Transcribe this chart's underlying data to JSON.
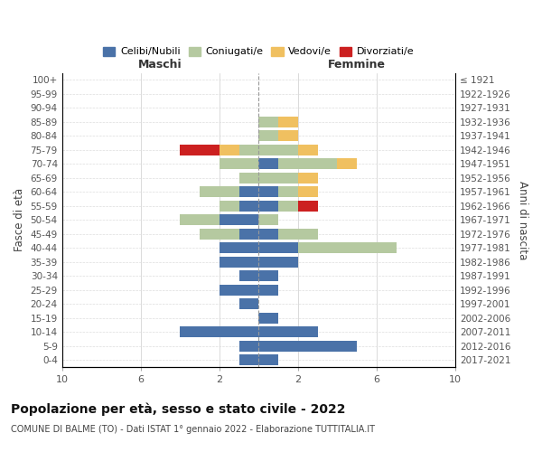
{
  "age_groups": [
    "0-4",
    "5-9",
    "10-14",
    "15-19",
    "20-24",
    "25-29",
    "30-34",
    "35-39",
    "40-44",
    "45-49",
    "50-54",
    "55-59",
    "60-64",
    "65-69",
    "70-74",
    "75-79",
    "80-84",
    "85-89",
    "90-94",
    "95-99",
    "100+"
  ],
  "birth_years": [
    "2017-2021",
    "2012-2016",
    "2007-2011",
    "2002-2006",
    "1997-2001",
    "1992-1996",
    "1987-1991",
    "1982-1986",
    "1977-1981",
    "1972-1976",
    "1967-1971",
    "1962-1966",
    "1957-1961",
    "1952-1956",
    "1947-1951",
    "1942-1946",
    "1937-1941",
    "1932-1936",
    "1927-1931",
    "1922-1926",
    "≤ 1921"
  ],
  "maschi": {
    "celibi": [
      1,
      1,
      4,
      0,
      1,
      2,
      1,
      2,
      2,
      1,
      2,
      1,
      1,
      0,
      0,
      0,
      0,
      0,
      0,
      0,
      0
    ],
    "coniugati": [
      0,
      0,
      0,
      0,
      0,
      0,
      0,
      0,
      0,
      2,
      2,
      1,
      2,
      1,
      2,
      1,
      0,
      0,
      0,
      0,
      0
    ],
    "vedovi": [
      0,
      0,
      0,
      0,
      0,
      0,
      0,
      0,
      0,
      0,
      0,
      0,
      0,
      0,
      0,
      1,
      0,
      0,
      0,
      0,
      0
    ],
    "divorziati": [
      0,
      0,
      0,
      0,
      0,
      0,
      0,
      0,
      0,
      0,
      0,
      0,
      0,
      0,
      0,
      2,
      0,
      0,
      0,
      0,
      0
    ]
  },
  "femmine": {
    "nubili": [
      1,
      5,
      3,
      1,
      0,
      1,
      1,
      2,
      2,
      1,
      0,
      1,
      1,
      0,
      1,
      0,
      0,
      0,
      0,
      0,
      0
    ],
    "coniugate": [
      0,
      0,
      0,
      0,
      0,
      0,
      0,
      0,
      5,
      2,
      1,
      1,
      1,
      2,
      3,
      2,
      1,
      1,
      0,
      0,
      0
    ],
    "vedove": [
      0,
      0,
      0,
      0,
      0,
      0,
      0,
      0,
      0,
      0,
      0,
      0,
      1,
      1,
      1,
      1,
      1,
      1,
      0,
      0,
      0
    ],
    "divorziate": [
      0,
      0,
      0,
      0,
      0,
      0,
      0,
      0,
      0,
      0,
      0,
      1,
      0,
      0,
      0,
      0,
      0,
      0,
      0,
      0,
      0
    ]
  },
  "colors": {
    "celibi_nubili": "#4a72a8",
    "coniugati": "#b5c9a0",
    "vedovi": "#f0c060",
    "divorziati": "#cc2020"
  },
  "title": "Popolazione per età, sesso e stato civile - 2022",
  "subtitle": "COMUNE DI BALME (TO) - Dati ISTAT 1° gennaio 2022 - Elaborazione TUTTITALIA.IT",
  "xlabel_maschi": "Maschi",
  "xlabel_femmine": "Femmine",
  "ylabel": "Fasce di età",
  "ylabel_right": "Anni di nascita",
  "xlim": 10,
  "background_color": "#ffffff"
}
